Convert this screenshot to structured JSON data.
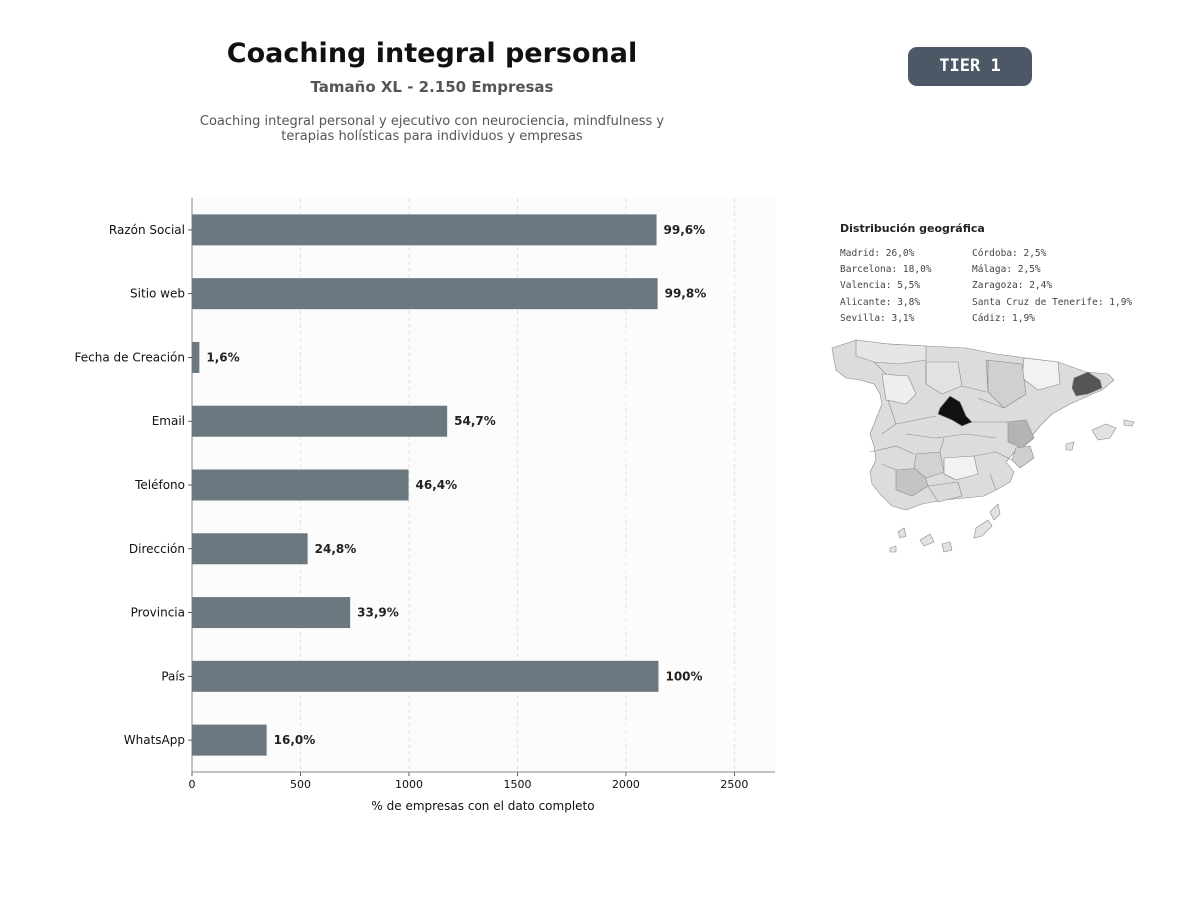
{
  "header": {
    "title": "Coaching integral personal",
    "subtitle": "Tamaño XL - 2.150 Empresas",
    "description": "Coaching integral personal y ejecutivo con neurociencia, mindfulness y terapias holísticas para individuos y empresas",
    "tier": "TIER 1"
  },
  "chart_data": {
    "type": "bar",
    "orientation": "horizontal",
    "categories": [
      "Razón Social",
      "Sitio web",
      "Fecha de Creación",
      "Email",
      "Teléfono",
      "Dirección",
      "Provincia",
      "País",
      "WhatsApp"
    ],
    "values": [
      2141,
      2146,
      34,
      1176,
      998,
      533,
      729,
      2150,
      344
    ],
    "value_labels": [
      "99,6%",
      "99,8%",
      "1,6%",
      "54,7%",
      "46,4%",
      "24,8%",
      "33,9%",
      "100%",
      "16,0%"
    ],
    "xlabel": "% de empresas con el dato completo",
    "ylabel": "",
    "xlim": [
      0,
      2687
    ],
    "xticks": [
      0,
      500,
      1000,
      1500,
      2000,
      2500
    ],
    "grid": "x-dashed",
    "bar_color": "#6c7880"
  },
  "geo": {
    "title": "Distribución geográfica",
    "col1": [
      "Madrid: 26,0%",
      "Barcelona: 18,0%",
      "Valencia: 5,5%",
      "Alicante: 3,8%",
      "Sevilla: 3,1%"
    ],
    "col2": [
      "Córdoba: 2,5%",
      "Málaga: 2,5%",
      "Zaragoza: 2,4%",
      "Santa Cruz de Tenerife: 1,9%",
      "Cádiz: 1,9%"
    ]
  }
}
